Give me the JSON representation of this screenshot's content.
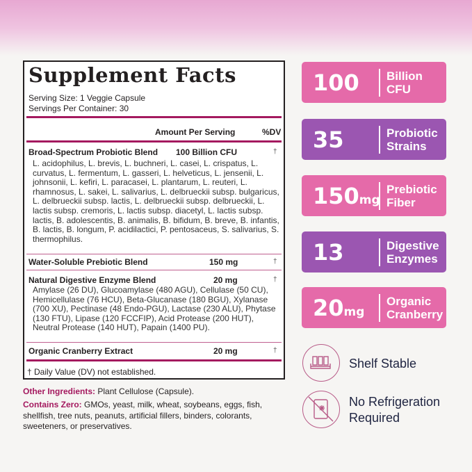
{
  "facts": {
    "title": "Supplement Facts",
    "serving_size": "Serving Size: 1 Veggie Capsule",
    "servings_per_container": "Servings Per Container: 30",
    "col_amount": "Amount Per Serving",
    "col_dv": "%DV",
    "rows": [
      {
        "name": "Broad-Spectrum Probiotic Blend",
        "amount": "100 Billion CFU",
        "dv": "†",
        "detail": "L. acidophilus, L. brevis, L. buchneri, L. casei, L. crispatus, L. curvatus, L. fermentum, L. gasseri, L. helveticus, L. jensenii, L. johnsonii, L. kefiri, L. paracasei, L. plantarum, L. reuteri, L. rhamnosus, L. sakei, L. salivarius, L. delbrueckii subsp. bulgaricus, L. delbrueckii subsp. lactis, L. delbrueckii subsp. delbrueckii, L. lactis subsp. cremoris, L. lactis subsp. diacetyl, L. lactis subsp. lactis, B. adolescentis, B. animalis, B. bifidum, B. breve, B. infantis, B. lactis, B. longum, P. acidilactici, P. pentosaceus, S. salivarius, S. thermophilus."
      },
      {
        "name": "Water-Soluble Prebiotic Blend",
        "amount": "150 mg",
        "dv": "†"
      },
      {
        "name": "Natural Digestive Enzyme Blend",
        "amount": "20 mg",
        "dv": "†",
        "detail": "Amylase (26 DU), Glucoamylase (480 AGU), Cellulase (50 CU), Hemicellulase (76 HCU), Beta-Glucanase (180 BGU), Xylanase (700 XU), Pectinase (48 Endo-PGU), Lactase (230 ALU), Phytase (130 FTU), Lipase (120 FCCFIP), Acid Protease (200 HUT), Neutral Protease (140 HUT), Papain (1400 PU)."
      },
      {
        "name": "Organic Cranberry Extract",
        "amount": "20 mg",
        "dv": "†"
      }
    ],
    "footnote": "† Daily Value (DV) not established."
  },
  "other_ingredients": {
    "label": "Other Ingredients:",
    "value": " Plant Cellulose (Capsule)."
  },
  "contains_zero": {
    "label": "Contains Zero:",
    "value": " GMOs, yeast, milk, wheat, soybeans, eggs, fish, shellfish, tree nuts, peanuts, artificial fillers, binders, colorants, sweeteners, or preservatives."
  },
  "badges": [
    {
      "number": "100",
      "unit": "",
      "line1": "Billion",
      "line2": "CFU",
      "color": "#e56aa9"
    },
    {
      "number": "35",
      "unit": "",
      "line1": "Probiotic",
      "line2": "Strains",
      "color": "#9b56b1"
    },
    {
      "number": "150",
      "unit": "mg",
      "line1": "Prebiotic",
      "line2": "Fiber",
      "color": "#e56aa9"
    },
    {
      "number": "13",
      "unit": "",
      "line1": "Digestive",
      "line2": "Enzymes",
      "color": "#9b56b1"
    },
    {
      "number": "20",
      "unit": "mg",
      "line1": "Organic",
      "line2": "Cranberry",
      "color": "#e56aa9"
    }
  ],
  "features": [
    {
      "icon": "bottles-on-shelf-icon",
      "text": "Shelf Stable"
    },
    {
      "icon": "no-refrigerator-icon",
      "line1": "No Refrigeration",
      "line2": "Required"
    }
  ]
}
